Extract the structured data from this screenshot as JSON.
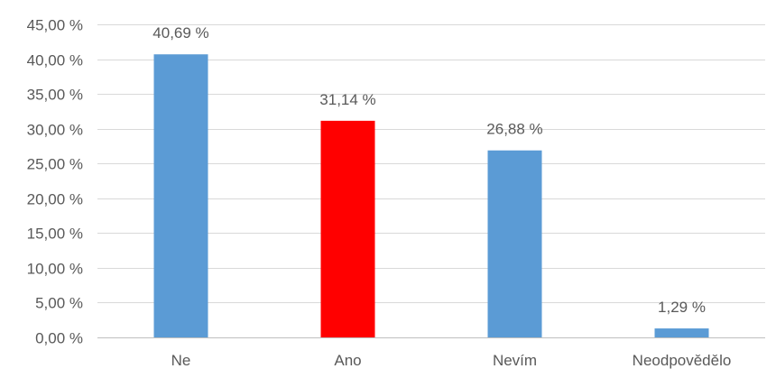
{
  "chart_data": {
    "type": "bar",
    "title": "",
    "xlabel": "",
    "ylabel": "",
    "categories": [
      "Ne",
      "Ano",
      "Nevím",
      "Neodpovědělo"
    ],
    "values": [
      40.69,
      31.14,
      26.88,
      1.29
    ],
    "data_labels": [
      "40,69 %",
      "31,14 %",
      "26,88 %",
      "1,29 %"
    ],
    "bar_colors": [
      "#5b9bd5",
      "#ff0000",
      "#5b9bd5",
      "#5b9bd5"
    ],
    "ylim": [
      0,
      45
    ],
    "y_ticks": [
      0,
      5,
      10,
      15,
      20,
      25,
      30,
      35,
      40,
      45
    ],
    "y_tick_labels": [
      "0,00 %",
      "5,00 %",
      "10,00 %",
      "15,00 %",
      "20,00 %",
      "25,00 %",
      "30,00 %",
      "35,00 %",
      "40,00 %",
      "45,00 %"
    ],
    "grid": true,
    "legend": "none",
    "colors": {
      "gridline": "#d9d9d9",
      "axis": "#bfbfbf",
      "text": "#595959"
    }
  }
}
